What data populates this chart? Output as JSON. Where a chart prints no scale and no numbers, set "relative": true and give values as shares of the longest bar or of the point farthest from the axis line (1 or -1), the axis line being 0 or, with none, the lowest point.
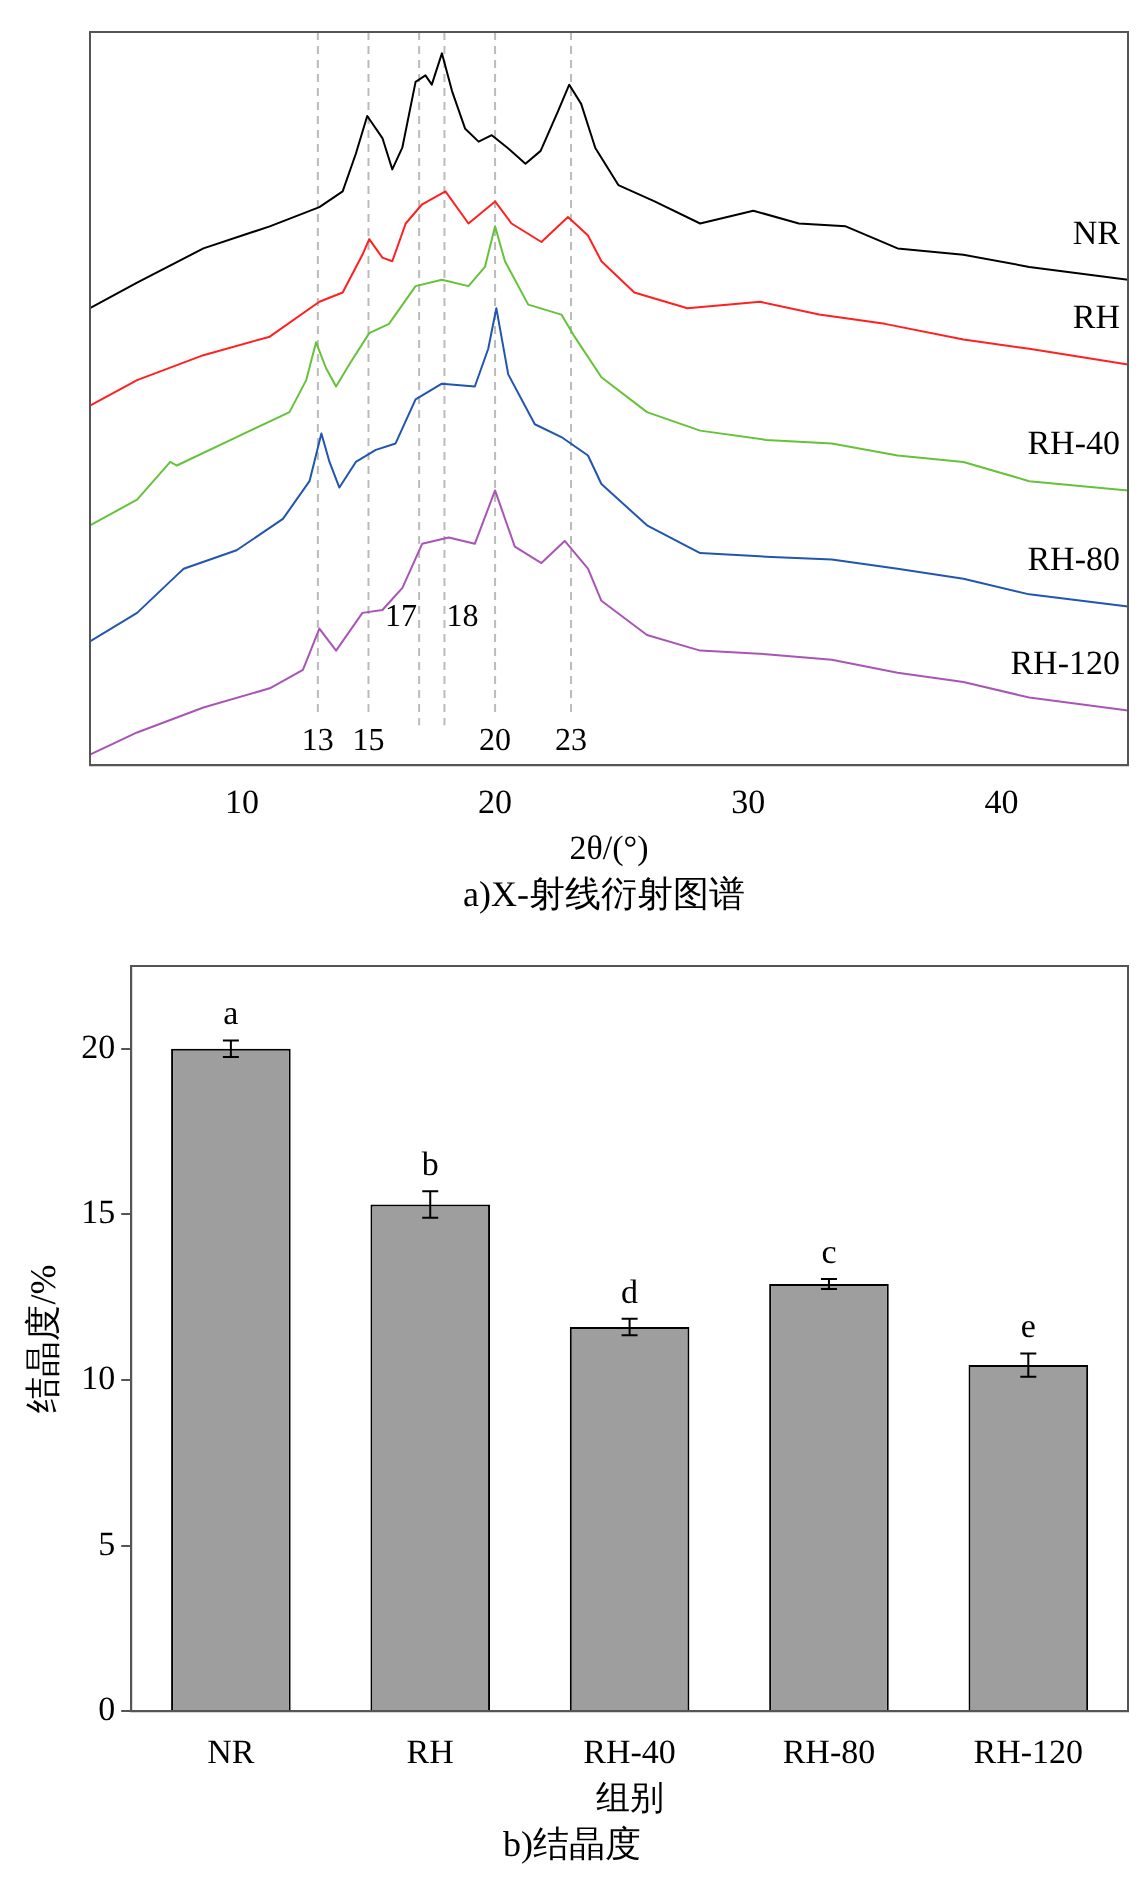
{
  "chart_data": [
    {
      "type": "line",
      "title": "a)X-射线衍射图谱",
      "xlabel": "2θ/(°)",
      "relative": true,
      "xlim": [
        4,
        45
      ],
      "xticks": [
        10,
        20,
        30,
        40
      ],
      "grid": false,
      "legend": false,
      "marker": "none",
      "ref_lines": [
        {
          "axis": "x",
          "value": 13,
          "label": "13",
          "color": "#bbbbbb",
          "line_style": "dashed"
        },
        {
          "axis": "x",
          "value": 15,
          "label": "15",
          "color": "#bbbbbb",
          "line_style": "dashed"
        },
        {
          "axis": "x",
          "value": 17,
          "label": "17",
          "color": "#bbbbbb",
          "line_style": "dashed"
        },
        {
          "axis": "x",
          "value": 18,
          "label": "18",
          "color": "#bbbbbb",
          "line_style": "dashed"
        },
        {
          "axis": "x",
          "value": 20,
          "label": "20",
          "color": "#bbbbbb",
          "line_style": "dashed"
        },
        {
          "axis": "x",
          "value": 23,
          "label": "23",
          "color": "#bbbbbb",
          "line_style": "dashed"
        }
      ],
      "series": [
        {
          "name": "NR",
          "color": "#000000",
          "x": [
            4.0,
            5.86,
            8.48,
            11.1,
            13.06,
            13.98,
            14.5,
            14.95,
            15.55,
            15.94,
            16.34,
            16.86,
            17.25,
            17.5,
            17.9,
            18.3,
            18.82,
            19.35,
            19.87,
            20.5,
            21.2,
            21.8,
            22.5,
            22.93,
            23.4,
            23.96,
            24.87,
            26.3,
            28.1,
            30.2,
            32.0,
            33.85,
            35.9,
            38.5,
            41.1,
            45.0
          ],
          "values": [
            0.642,
            0.678,
            0.726,
            0.757,
            0.784,
            0.806,
            0.859,
            0.912,
            0.881,
            0.837,
            0.868,
            0.96,
            0.969,
            0.956,
            1.0,
            0.947,
            0.894,
            0.876,
            0.885,
            0.867,
            0.845,
            0.863,
            0.92,
            0.956,
            0.929,
            0.867,
            0.815,
            0.792,
            0.761,
            0.779,
            0.761,
            0.757,
            0.726,
            0.717,
            0.7,
            0.682
          ]
        },
        {
          "name": "RH",
          "color": "#ff2020",
          "x": [
            4.0,
            5.86,
            8.48,
            11.1,
            13.06,
            13.98,
            14.76,
            15.03,
            15.55,
            15.94,
            16.47,
            17.12,
            18.04,
            18.95,
            20.0,
            20.65,
            21.83,
            22.88,
            23.67,
            24.2,
            25.5,
            27.6,
            30.47,
            32.8,
            35.4,
            38.5,
            41.1,
            45.0
          ],
          "values": [
            0.505,
            0.541,
            0.576,
            0.602,
            0.651,
            0.664,
            0.717,
            0.739,
            0.713,
            0.708,
            0.761,
            0.788,
            0.806,
            0.761,
            0.792,
            0.761,
            0.735,
            0.77,
            0.744,
            0.708,
            0.664,
            0.642,
            0.651,
            0.633,
            0.62,
            0.598,
            0.585,
            0.563
          ]
        },
        {
          "name": "RH-40",
          "color": "#66c23a",
          "x": [
            4.0,
            5.86,
            7.17,
            7.43,
            9.79,
            11.88,
            12.54,
            12.93,
            13.32,
            13.72,
            14.24,
            15.03,
            15.81,
            16.86,
            17.9,
            18.95,
            19.6,
            20.0,
            20.39,
            21.31,
            22.62,
            23.14,
            24.2,
            26.0,
            28.1,
            30.7,
            33.3,
            35.9,
            38.5,
            41.1,
            45.0
          ],
          "values": [
            0.337,
            0.373,
            0.426,
            0.421,
            0.461,
            0.496,
            0.541,
            0.594,
            0.558,
            0.532,
            0.563,
            0.607,
            0.62,
            0.673,
            0.682,
            0.673,
            0.7,
            0.757,
            0.708,
            0.647,
            0.633,
            0.602,
            0.545,
            0.496,
            0.47,
            0.457,
            0.452,
            0.435,
            0.426,
            0.399,
            0.386
          ]
        },
        {
          "name": "RH-80",
          "color": "#2155b0",
          "x": [
            4.0,
            5.86,
            7.43,
            7.7,
            9.79,
            11.62,
            12.67,
            13.14,
            13.46,
            13.85,
            14.5,
            15.29,
            16.07,
            16.86,
            17.9,
            19.2,
            19.73,
            20.05,
            20.52,
            21.57,
            22.62,
            23.67,
            24.2,
            26.0,
            28.1,
            30.7,
            33.3,
            35.9,
            38.5,
            41.1,
            45.0
          ],
          "values": [
            0.174,
            0.214,
            0.267,
            0.276,
            0.302,
            0.346,
            0.399,
            0.466,
            0.426,
            0.39,
            0.426,
            0.443,
            0.452,
            0.514,
            0.536,
            0.532,
            0.585,
            0.642,
            0.549,
            0.479,
            0.461,
            0.435,
            0.395,
            0.337,
            0.298,
            0.293,
            0.289,
            0.276,
            0.262,
            0.24,
            0.223
          ]
        },
        {
          "name": "RH-120",
          "color": "#a855b5",
          "x": [
            4.0,
            5.86,
            8.48,
            11.1,
            12.41,
            13.06,
            13.72,
            14.76,
            15.55,
            16.34,
            17.12,
            18.17,
            19.2,
            20.0,
            20.78,
            21.83,
            22.75,
            23.67,
            24.2,
            26.0,
            28.1,
            30.7,
            33.3,
            35.9,
            38.5,
            41.1,
            45.0
          ],
          "values": [
            0.015,
            0.046,
            0.081,
            0.108,
            0.134,
            0.192,
            0.161,
            0.214,
            0.218,
            0.249,
            0.311,
            0.32,
            0.311,
            0.386,
            0.307,
            0.284,
            0.315,
            0.276,
            0.231,
            0.183,
            0.161,
            0.156,
            0.148,
            0.13,
            0.117,
            0.095,
            0.077
          ]
        }
      ]
    },
    {
      "type": "bar",
      "title": "b)结晶度",
      "xlabel": "组别",
      "ylabel": "结晶度/%",
      "categories": [
        "NR",
        "RH",
        "RH-40",
        "RH-80",
        "RH-120"
      ],
      "values": [
        20.0,
        15.3,
        11.6,
        12.9,
        10.45
      ],
      "errors": [
        0.25,
        0.4,
        0.25,
        0.15,
        0.35
      ],
      "color": "#9e9e9e",
      "ylim": [
        0,
        22.5
      ],
      "yticks": [
        0,
        5,
        10,
        15,
        20
      ],
      "grid": false,
      "legend": false,
      "annotations": [
        {
          "text": "a",
          "x": "NR",
          "y": 20.25
        },
        {
          "text": "b",
          "x": "RH",
          "y": 15.7
        },
        {
          "text": "d",
          "x": "RH-40",
          "y": 11.85
        },
        {
          "text": "c",
          "x": "RH-80",
          "y": 13.05
        },
        {
          "text": "e",
          "x": "RH-120",
          "y": 10.8
        }
      ]
    }
  ]
}
